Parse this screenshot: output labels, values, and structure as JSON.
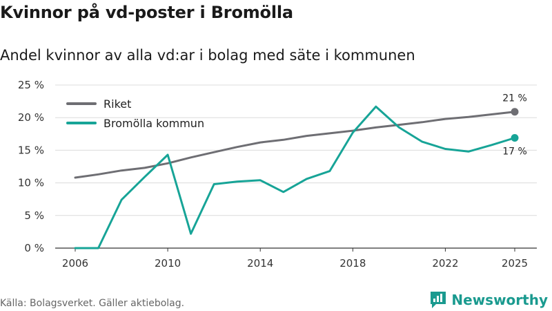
{
  "header": {
    "title": "Kvinnor på vd-poster i Bromölla",
    "subtitle": "Andel kvinnor av alla vd:ar i bolag med säte i kommunen"
  },
  "footer": {
    "source": "Källa: Bolagsverket. Gäller aktiebolag.",
    "brand": "Newsworthy"
  },
  "colors": {
    "riket": "#6e6e73",
    "bromolla": "#17a497",
    "brand": "#1a9a8f"
  },
  "chart_data": {
    "type": "line",
    "title": "Kvinnor på vd-poster i Bromölla",
    "subtitle": "Andel kvinnor av alla vd:ar i bolag med säte i kommunen",
    "xlabel": "",
    "ylabel": "",
    "ylim": [
      0,
      25
    ],
    "xlim": [
      2006,
      2025
    ],
    "grid": true,
    "legend_position": "top-left",
    "x": [
      2006,
      2007,
      2008,
      2009,
      2010,
      2011,
      2012,
      2013,
      2014,
      2015,
      2016,
      2017,
      2018,
      2019,
      2020,
      2021,
      2022,
      2023,
      2024,
      2025
    ],
    "x_ticks": [
      2006,
      2010,
      2014,
      2018,
      2022,
      2025
    ],
    "x_tick_labels": [
      "2006",
      "2010",
      "2014",
      "2018",
      "2022",
      "2025"
    ],
    "y_ticks": [
      0,
      5,
      10,
      15,
      20,
      25
    ],
    "y_tick_labels": [
      "0 %",
      "5 %",
      "10 %",
      "15 %",
      "20 %",
      "25 %"
    ],
    "series": [
      {
        "name": "Riket",
        "values": [
          10.8,
          11.3,
          11.9,
          12.3,
          13.0,
          13.9,
          14.7,
          15.5,
          16.2,
          16.6,
          17.2,
          17.6,
          18.0,
          18.5,
          18.9,
          19.3,
          19.8,
          20.1,
          20.5,
          20.9
        ],
        "end_label": "21 %"
      },
      {
        "name": "Bromölla kommun",
        "values": [
          0.0,
          0.0,
          7.4,
          10.9,
          14.3,
          2.2,
          9.8,
          10.2,
          10.4,
          8.6,
          10.6,
          11.8,
          17.7,
          21.7,
          18.5,
          16.3,
          15.2,
          14.8,
          15.8,
          16.9
        ],
        "end_label": "17 %"
      }
    ]
  }
}
